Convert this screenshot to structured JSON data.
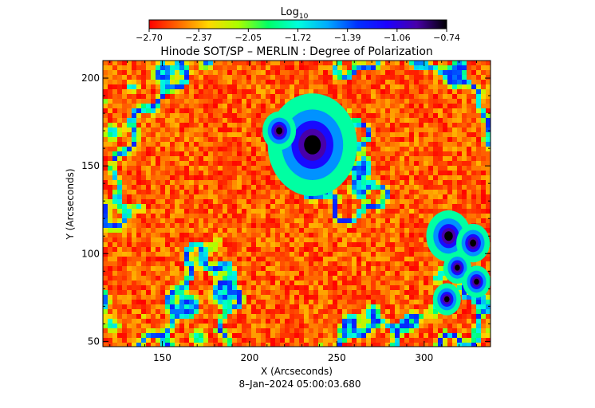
{
  "chart_data": {
    "type": "heatmap",
    "title": "Hinode SOT/SP – MERLIN : Degree of Polarization",
    "xlabel": "X (Arcseconds)",
    "ylabel": "Y (Arcseconds)",
    "xlim": [
      116,
      338
    ],
    "ylim": [
      47,
      210
    ],
    "xticks": [
      "150",
      "200",
      "250",
      "300"
    ],
    "xtick_values": [
      150,
      200,
      250,
      300
    ],
    "yticks": [
      "50",
      "100",
      "150",
      "200"
    ],
    "ytick_values": [
      50,
      100,
      150,
      200
    ],
    "colorbar": {
      "label_base": "Log",
      "label_sub": "10",
      "ticks": [
        "−2.70",
        "−2.37",
        "−2.05",
        "−1.72",
        "−1.39",
        "−1.06",
        "−0.74"
      ],
      "range": [
        -2.7,
        -0.74
      ],
      "colormap": [
        "#ff0000",
        "#ff6a00",
        "#ffd800",
        "#aaff00",
        "#00ff66",
        "#00ffdd",
        "#00aaff",
        "#0030ff",
        "#1e00ff",
        "#4800a8",
        "#000000"
      ]
    },
    "dark_features": [
      {
        "name": "sunspot",
        "x": 236,
        "y": 162,
        "r": 8
      },
      {
        "name": "pore",
        "x": 217,
        "y": 170,
        "r": 3
      },
      {
        "name": "pore",
        "x": 314,
        "y": 110,
        "r": 4
      },
      {
        "name": "pore",
        "x": 328,
        "y": 106,
        "r": 3
      },
      {
        "name": "pore",
        "x": 319,
        "y": 92,
        "r": 2.5
      },
      {
        "name": "pore",
        "x": 330,
        "y": 84,
        "r": 2.5
      },
      {
        "name": "pore",
        "x": 313,
        "y": 74,
        "r": 2.5
      }
    ],
    "background_level": -2.7
  },
  "footer": {
    "timestamp": "8–Jan–2024 05:00:03.680"
  }
}
